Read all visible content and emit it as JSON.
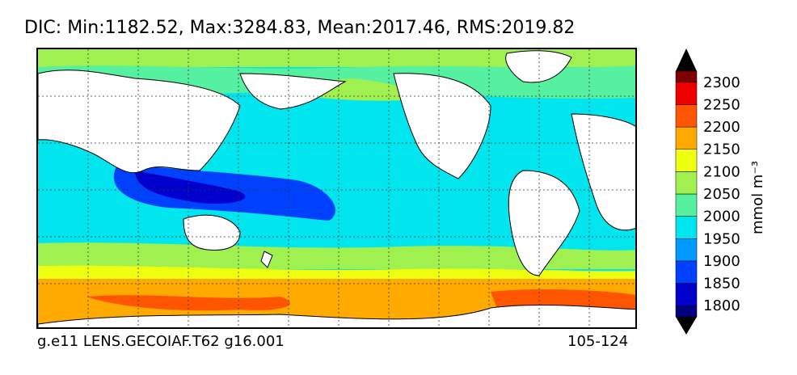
{
  "chart_data": {
    "type": "heatmap",
    "title": "DIC: Min:1182.52, Max:3284.83, Mean:2017.46, RMS:2019.82",
    "stats": {
      "min": 1182.52,
      "max": 3284.83,
      "mean": 2017.46,
      "rms": 2019.82
    },
    "variable": "DIC",
    "footer_left": "g.e11 LENS.GECOIAF.T62 g16.001",
    "footer_right": "105-124",
    "colorbar": {
      "unit_label": "mmol m⁻³",
      "ticks": [
        "1800",
        "1850",
        "1900",
        "1950",
        "2000",
        "2050",
        "2100",
        "2150",
        "2200",
        "2250",
        "2300"
      ],
      "levels": [
        1775,
        1800,
        1850,
        1900,
        1950,
        2000,
        2050,
        2100,
        2150,
        2200,
        2250,
        2300,
        2325
      ],
      "colors": [
        "#000080",
        "#0000cd",
        "#0040ff",
        "#0099ff",
        "#00e5ee",
        "#55f0a0",
        "#a0f050",
        "#eeff10",
        "#ffaa00",
        "#ff5500",
        "#ee0000",
        "#800000"
      ],
      "extend_low_color": "#000000",
      "extend_high_color": "#000000"
    },
    "map": {
      "projection": "lat-lon",
      "grid": true,
      "land_color": "#ffffff",
      "coastline_color": "#000000"
    }
  }
}
